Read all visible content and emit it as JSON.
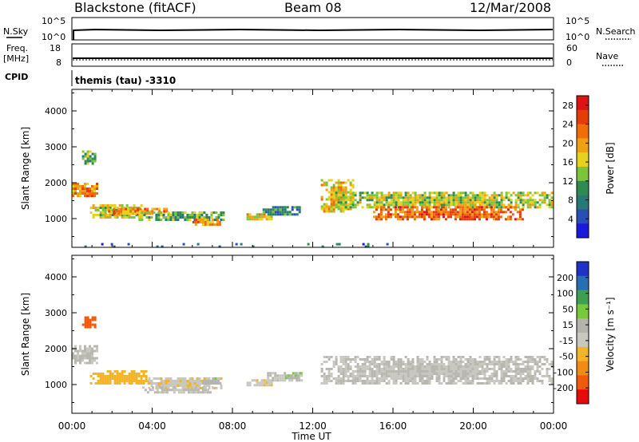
{
  "header": {
    "station": "Blackstone (fitACF)",
    "beam": "Beam 08",
    "date": "12/Mar/2008"
  },
  "strip_labels": {
    "nsky": "N.Sky",
    "nsearch": "N.Search",
    "freq_top": "Freq.",
    "freq_unit": "[MHz]",
    "nave": "Nave",
    "cpid": "CPID",
    "cpid_value": "themis (tau) -3310",
    "noise_ticks_left": [
      "10^5",
      "10^0"
    ],
    "noise_ticks_right": [
      "10^5",
      "10^0"
    ],
    "freq_ticks_left": [
      "18",
      "8"
    ],
    "nave_ticks_right": [
      "60",
      "0"
    ]
  },
  "colors": {
    "power_scale": [
      "#1a1adc",
      "#2850b4",
      "#287878",
      "#2e8c50",
      "#7cc43c",
      "#e6d21e",
      "#f0a014",
      "#f06e0a",
      "#e63c0a",
      "#dc1414"
    ],
    "velocity_scale": [
      "#e60a0a",
      "#f05a0a",
      "#f08c14",
      "#f5b428",
      "#c8c8c0",
      "#b4b4ac",
      "#78c83c",
      "#3ca050",
      "#286eb4",
      "#1e32c8"
    ],
    "ground_scatter": "#c0c0b8"
  },
  "chart_data": [
    {
      "type": "heatmap",
      "title": "",
      "xlabel": "Time UT",
      "ylabel": "Slant Range [km]",
      "x_ticks": [
        "00:00",
        "04:00",
        "08:00",
        "12:00",
        "16:00",
        "20:00",
        "00:00"
      ],
      "y_ticks": [
        "1000",
        "2000",
        "3000",
        "4000"
      ],
      "xlim_hours": [
        0,
        24
      ],
      "ylim_km": [
        200,
        4600
      ],
      "colorbar": {
        "label": "Power [dB]",
        "ticks": [
          "4",
          "8",
          "12",
          "16",
          "20",
          "24",
          "28"
        ],
        "range": [
          0,
          30
        ]
      },
      "regions": [
        {
          "t0": 0.5,
          "t1": 1.1,
          "r0": 2550,
          "r1": 2900,
          "value": 11
        },
        {
          "t0": 0.0,
          "t1": 1.3,
          "r0": 1600,
          "r1": 2000,
          "value": 21
        },
        {
          "t0": 0.9,
          "t1": 3.5,
          "r0": 1000,
          "r1": 1400,
          "value": 16
        },
        {
          "t0": 1.8,
          "t1": 4.8,
          "r0": 1100,
          "r1": 1300,
          "value": 20
        },
        {
          "t0": 3.2,
          "t1": 7.5,
          "r0": 950,
          "r1": 1200,
          "value": 12
        },
        {
          "t0": 6.0,
          "t1": 7.4,
          "r0": 850,
          "r1": 1000,
          "value": 21
        },
        {
          "t0": 8.7,
          "t1": 10.0,
          "r0": 950,
          "r1": 1150,
          "value": 17
        },
        {
          "t0": 9.5,
          "t1": 11.5,
          "r0": 1100,
          "r1": 1350,
          "value": 8
        },
        {
          "t0": 12.4,
          "t1": 14.0,
          "r0": 1200,
          "r1": 2100,
          "value": 18
        },
        {
          "t0": 13.0,
          "t1": 23.9,
          "r0": 1300,
          "r1": 1750,
          "value": 15
        },
        {
          "t0": 15.0,
          "t1": 22.5,
          "r0": 1000,
          "r1": 1350,
          "value": 23
        },
        {
          "t0": 0.5,
          "t1": 16.0,
          "r0": 220,
          "r1": 320,
          "value": 6
        }
      ]
    },
    {
      "type": "heatmap",
      "title": "",
      "xlabel": "Time UT",
      "ylabel": "Slant Range [km]",
      "x_ticks": [
        "00:00",
        "04:00",
        "08:00",
        "12:00",
        "16:00",
        "20:00",
        "00:00"
      ],
      "y_ticks": [
        "1000",
        "2000",
        "3000",
        "4000"
      ],
      "xlim_hours": [
        0,
        24
      ],
      "ylim_km": [
        200,
        4600
      ],
      "colorbar": {
        "label": "Velocity [m s⁻¹]",
        "ticks": [
          "200",
          "100",
          "50",
          "15",
          "-15",
          "-50",
          "-100",
          "-200"
        ],
        "range": [
          -250,
          250
        ]
      },
      "regions": [
        {
          "t0": 0.5,
          "t1": 1.1,
          "r0": 2600,
          "r1": 2900,
          "value": -180,
          "kind": "ionospheric"
        },
        {
          "t0": 0.0,
          "t1": 1.3,
          "r0": 1600,
          "r1": 2100,
          "value": 0,
          "kind": "ground"
        },
        {
          "t0": 0.9,
          "t1": 3.8,
          "r0": 1000,
          "r1": 1400,
          "value": -75,
          "kind": "ionospheric"
        },
        {
          "t0": 3.8,
          "t1": 7.4,
          "r0": 900,
          "r1": 1200,
          "value": -40,
          "kind": "ionospheric"
        },
        {
          "t0": 6.5,
          "t1": 7.4,
          "r0": 1000,
          "r1": 1200,
          "value": 40,
          "kind": "ionospheric"
        },
        {
          "t0": 3.5,
          "t1": 7.0,
          "r0": 800,
          "r1": 950,
          "value": 0,
          "kind": "ground"
        },
        {
          "t0": 8.7,
          "t1": 10.0,
          "r0": 950,
          "r1": 1150,
          "value": -40,
          "kind": "ionospheric"
        },
        {
          "t0": 9.6,
          "t1": 11.4,
          "r0": 1100,
          "r1": 1350,
          "value": 0,
          "kind": "ground"
        },
        {
          "t0": 10.5,
          "t1": 11.4,
          "r0": 1150,
          "r1": 1350,
          "value": 40,
          "kind": "ionospheric"
        },
        {
          "t0": 12.4,
          "t1": 23.9,
          "r0": 1000,
          "r1": 1800,
          "value": 0,
          "kind": "ground"
        }
      ]
    }
  ]
}
